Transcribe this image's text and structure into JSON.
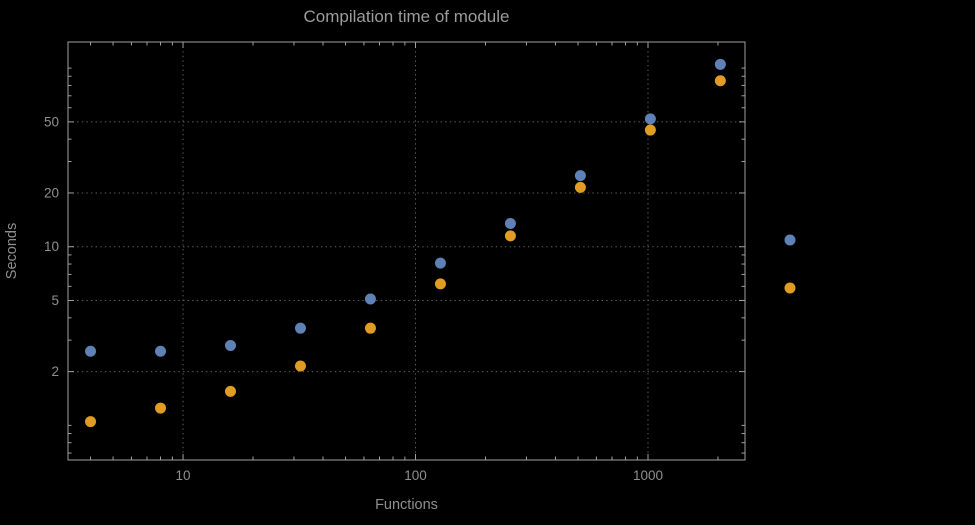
{
  "chart_data": {
    "type": "scatter",
    "title": "Compilation time of module",
    "xlabel": "Functions",
    "ylabel": "Seconds",
    "x_scale": "log",
    "y_scale": "log",
    "xlim": [
      3.2,
      2614
    ],
    "ylim": [
      0.64,
      140
    ],
    "x_ticks": [
      10,
      100,
      1000
    ],
    "y_ticks": [
      2,
      5,
      10,
      20,
      50
    ],
    "grid": true,
    "grid_style": "dotted",
    "legend_position": "right",
    "x": [
      4,
      8,
      16,
      32,
      64,
      128,
      256,
      512,
      1024,
      2048
    ],
    "series": [
      {
        "name": "series-1-blue",
        "color": "#5e82b5",
        "values": [
          2.6,
          2.6,
          2.8,
          3.5,
          5.1,
          8.1,
          13.5,
          25,
          52,
          105
        ]
      },
      {
        "name": "series-2-orange",
        "color": "#e19c24",
        "values": [
          1.05,
          1.25,
          1.55,
          2.15,
          3.5,
          6.2,
          11.5,
          21.5,
          45,
          85
        ]
      }
    ],
    "marker_radius": 5.5,
    "colors": {
      "background": "#000000",
      "frame": "#a0a0a0",
      "grid": "#5e5e5e",
      "title": "#9c9c9c",
      "labels": "#8f8f8f",
      "tick_labels": "#8f8f8f"
    }
  }
}
